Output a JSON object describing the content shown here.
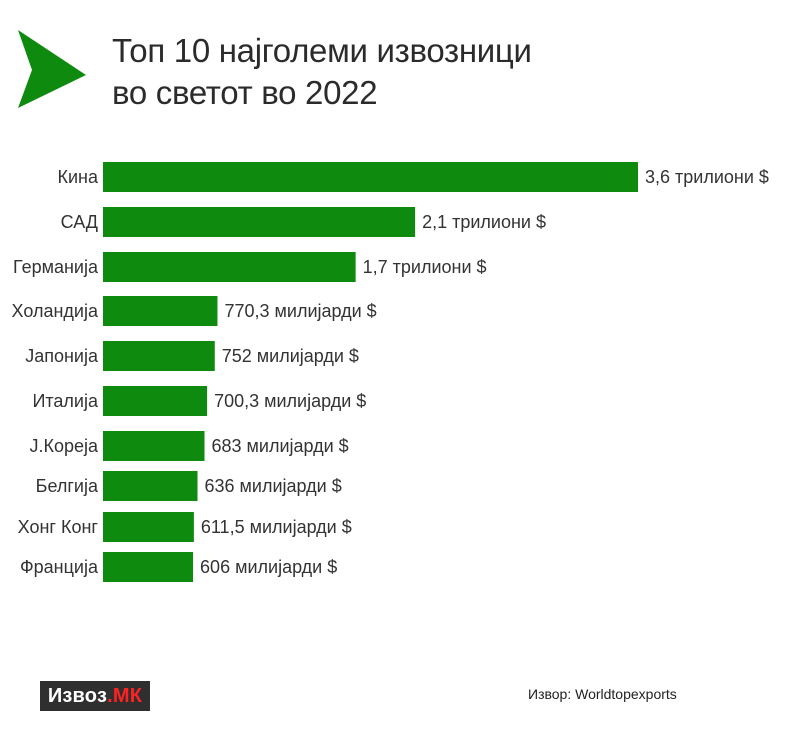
{
  "title": {
    "line1": "Топ 10 најголеми извозници",
    "line2": "во светот во 2022"
  },
  "brand": {
    "main": "Извоз",
    "dot": ".",
    "suffix": "МК"
  },
  "source": "Извор: Worldtopexports",
  "colors": {
    "bar": "#0e8a0e",
    "arrow": "#0e8a0e",
    "brand_bg": "#2f2f2f",
    "brand_accent": "#ff2222"
  },
  "chart_data": {
    "type": "bar",
    "orientation": "horizontal",
    "title": "Топ 10 најголеми извозници во светот во 2022",
    "unit": "USD",
    "categories": [
      "Кина",
      "САД",
      "Германија",
      "Холандија",
      "Јапонија",
      "Италија",
      "Ј.Кореја",
      "Белгија",
      "Хонг Конг",
      "Франција"
    ],
    "values": [
      3600,
      2100,
      1700,
      770.3,
      752,
      700.3,
      683,
      636,
      611.5,
      606
    ],
    "value_labels": [
      "3,6 трилиони $",
      "2,1 трилиони $",
      "1,7 трилиони $",
      "770,3 милијарди $",
      "752 милијарди $",
      "700,3 милијарди $",
      "683 милијарди $",
      "636 милијарди $",
      "611,5 милијарди $",
      "606 милијарди $"
    ],
    "value_unit": "милијарди $",
    "xlim": [
      0,
      3600
    ],
    "grid": false,
    "legend": "none"
  }
}
